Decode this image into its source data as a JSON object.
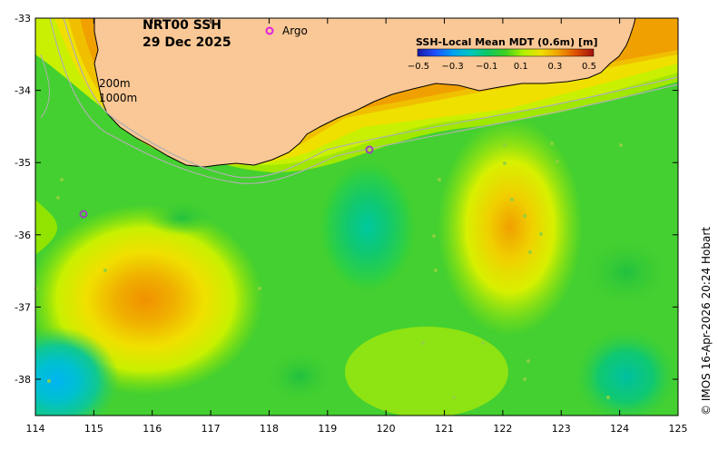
{
  "map": {
    "title_line1": "NRT00 SSH",
    "title_line2": "29 Dec 2025",
    "argo_legend": "Argo",
    "argo_color": "#e020e0",
    "contour_200": "200m",
    "contour_1000": "1000m",
    "credit": "© IMOS 16-Apr-2026 20:24 Hobart",
    "land_color": "#fac896",
    "lon_ticks": [
      "114",
      "115",
      "116",
      "117",
      "118",
      "119",
      "120",
      "121",
      "122",
      "123",
      "124",
      "125"
    ],
    "lat_ticks": [
      "-33",
      "-34",
      "-35",
      "-36",
      "-37",
      "-38"
    ]
  },
  "colorbar": {
    "title": "SSH-Local Mean MDT (0.6m) [m]",
    "labels": [
      "−0.5",
      "−0.3",
      "−0.1",
      "0.1",
      "0.3",
      "0.5"
    ],
    "colors": [
      "#1a1aa0",
      "#1e64ff",
      "#00b4e0",
      "#00c8a0",
      "#20c840",
      "#60dc00",
      "#b4f000",
      "#f0f000",
      "#f0c000",
      "#f09000",
      "#e06000",
      "#c03000",
      "#a01010"
    ]
  }
}
